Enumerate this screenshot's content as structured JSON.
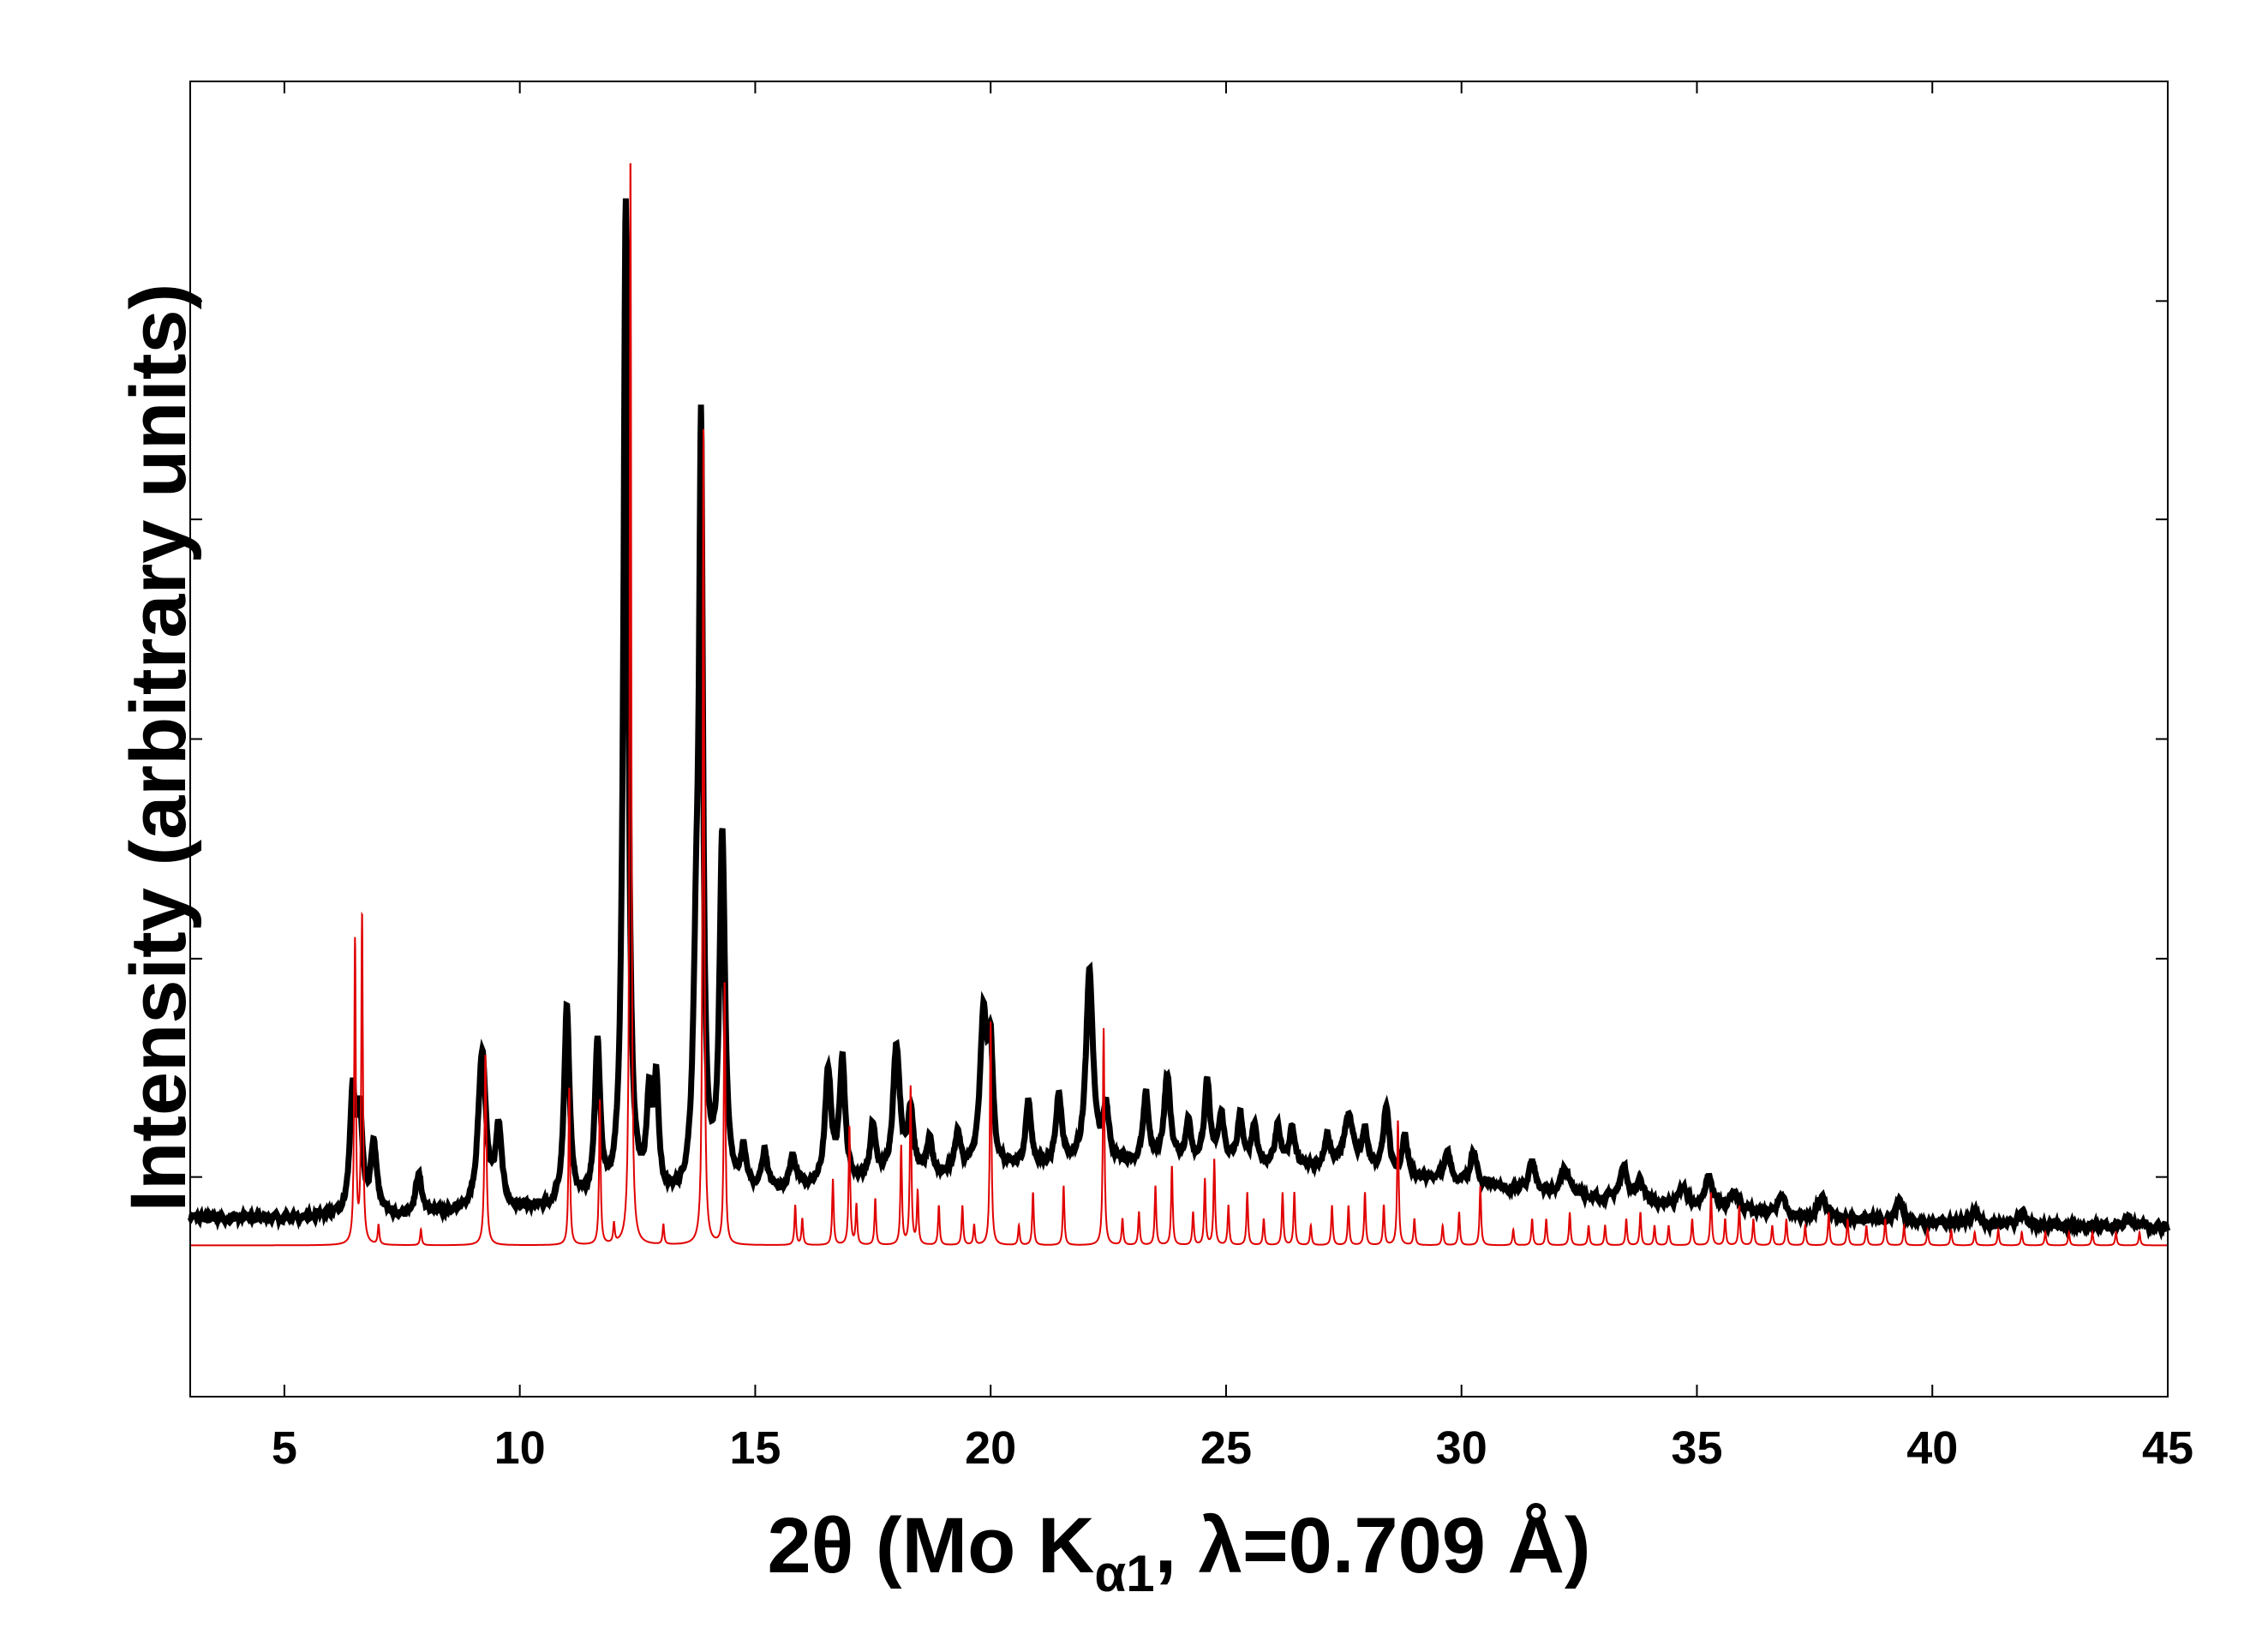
{
  "chart_data": {
    "type": "line",
    "xlabel": {
      "main": "2θ (Mo K",
      "sub": "α1",
      "rest": ", λ=0.709 Å)"
    },
    "ylabel": "Intensity (arbitrary units)",
    "xlim": [
      3,
      45
    ],
    "ylim": [
      0,
      100
    ],
    "xticks": [
      5,
      10,
      15,
      20,
      25,
      30,
      35,
      40,
      45
    ],
    "yticks": [
      16.7,
      33.3,
      50.0,
      66.7,
      83.3
    ],
    "grid": false,
    "legend": "none",
    "series": [
      {
        "color": "#000000",
        "baseline": 13.5,
        "baseline_end": 12.8,
        "noise": 0.5,
        "peaks": [
          [
            6.45,
            9.0,
            0.07
          ],
          [
            6.6,
            7.0,
            0.07
          ],
          [
            6.9,
            5.0,
            0.08
          ],
          [
            7.85,
            3.0,
            0.08
          ],
          [
            9.2,
            12.0,
            0.1
          ],
          [
            9.55,
            6.0,
            0.08
          ],
          [
            11.0,
            15.0,
            0.07
          ],
          [
            11.65,
            12.0,
            0.07
          ],
          [
            12.25,
            76.0,
            0.06
          ],
          [
            12.75,
            7.0,
            0.07
          ],
          [
            12.9,
            8.0,
            0.06
          ],
          [
            13.75,
            16.0,
            0.08
          ],
          [
            13.85,
            53.0,
            0.05
          ],
          [
            14.3,
            27.0,
            0.07
          ],
          [
            14.75,
            3.0,
            0.07
          ],
          [
            15.2,
            3.0,
            0.07
          ],
          [
            15.8,
            2.5,
            0.08
          ],
          [
            16.55,
            8.5,
            0.08
          ],
          [
            16.85,
            9.5,
            0.07
          ],
          [
            17.5,
            4.0,
            0.07
          ],
          [
            18.0,
            10.0,
            0.09
          ],
          [
            18.3,
            5.0,
            0.07
          ],
          [
            18.7,
            2.5,
            0.07
          ],
          [
            19.3,
            3.0,
            0.07
          ],
          [
            19.85,
            11.5,
            0.09
          ],
          [
            20.0,
            8.0,
            0.06
          ],
          [
            20.8,
            5.0,
            0.07
          ],
          [
            21.45,
            5.5,
            0.07
          ],
          [
            22.1,
            14.5,
            0.09
          ],
          [
            22.45,
            4.0,
            0.07
          ],
          [
            23.3,
            5.0,
            0.07
          ],
          [
            23.75,
            6.5,
            0.08
          ],
          [
            24.2,
            3.0,
            0.07
          ],
          [
            24.6,
            6.0,
            0.07
          ],
          [
            24.9,
            3.5,
            0.07
          ],
          [
            25.3,
            3.5,
            0.07
          ],
          [
            25.6,
            3.0,
            0.07
          ],
          [
            26.1,
            3.0,
            0.07
          ],
          [
            26.4,
            3.0,
            0.07
          ],
          [
            27.15,
            2.5,
            0.08
          ],
          [
            27.6,
            4.0,
            0.12
          ],
          [
            27.95,
            3.0,
            0.08
          ],
          [
            28.4,
            5.0,
            0.07
          ],
          [
            28.8,
            3.0,
            0.07
          ],
          [
            29.7,
            2.2,
            0.08
          ],
          [
            30.25,
            2.5,
            0.08
          ],
          [
            31.5,
            2.2,
            0.08
          ],
          [
            32.2,
            2.0,
            0.09
          ],
          [
            33.45,
            2.5,
            0.1
          ],
          [
            33.8,
            1.5,
            0.08
          ],
          [
            34.7,
            1.5,
            0.09
          ],
          [
            35.25,
            2.5,
            0.1
          ],
          [
            35.8,
            1.5,
            0.09
          ],
          [
            36.8,
            1.5,
            0.09
          ],
          [
            37.65,
            1.5,
            0.09
          ],
          [
            39.3,
            1.5,
            0.09
          ],
          [
            40.9,
            1.0,
            0.09
          ],
          [
            41.9,
            1.0,
            0.09
          ],
          [
            44.2,
            0.8,
            0.09
          ]
        ]
      },
      {
        "color": "#e00000",
        "baseline": 11.5,
        "baseline_end": 11.5,
        "noise": 0,
        "peaks": [
          [
            6.5,
            23.0,
            0.02
          ],
          [
            6.65,
            25.0,
            0.02
          ],
          [
            7.0,
            1.5,
            0.02
          ],
          [
            7.9,
            1.2,
            0.02
          ],
          [
            9.27,
            14.5,
            0.025
          ],
          [
            11.05,
            12.0,
            0.02
          ],
          [
            11.7,
            11.0,
            0.02
          ],
          [
            12.0,
            1.5,
            0.02
          ],
          [
            12.35,
            83.0,
            0.02
          ],
          [
            13.05,
            1.5,
            0.02
          ],
          [
            13.9,
            62.0,
            0.02
          ],
          [
            14.35,
            20.0,
            0.02
          ],
          [
            15.85,
            3.0,
            0.02
          ],
          [
            16.0,
            2.0,
            0.02
          ],
          [
            16.65,
            5.0,
            0.02
          ],
          [
            17.0,
            9.0,
            0.02
          ],
          [
            17.15,
            3.0,
            0.02
          ],
          [
            17.55,
            3.5,
            0.02
          ],
          [
            18.1,
            7.5,
            0.02
          ],
          [
            18.3,
            12.0,
            0.02
          ],
          [
            18.45,
            4.0,
            0.02
          ],
          [
            18.9,
            3.0,
            0.02
          ],
          [
            19.4,
            3.0,
            0.02
          ],
          [
            19.65,
            1.5,
            0.02
          ],
          [
            20.0,
            17.0,
            0.02
          ],
          [
            20.6,
            1.5,
            0.02
          ],
          [
            20.9,
            4.0,
            0.02
          ],
          [
            21.55,
            4.5,
            0.02
          ],
          [
            22.4,
            16.5,
            0.02
          ],
          [
            22.8,
            2.0,
            0.02
          ],
          [
            23.15,
            2.5,
            0.02
          ],
          [
            23.5,
            4.5,
            0.02
          ],
          [
            23.85,
            6.0,
            0.02
          ],
          [
            24.3,
            2.5,
            0.02
          ],
          [
            24.55,
            5.0,
            0.02
          ],
          [
            24.75,
            6.5,
            0.02
          ],
          [
            25.05,
            3.0,
            0.02
          ],
          [
            25.45,
            4.0,
            0.02
          ],
          [
            25.8,
            2.0,
            0.02
          ],
          [
            26.2,
            4.0,
            0.02
          ],
          [
            26.45,
            4.0,
            0.02
          ],
          [
            26.8,
            1.5,
            0.02
          ],
          [
            27.25,
            3.0,
            0.02
          ],
          [
            27.6,
            3.0,
            0.02
          ],
          [
            27.95,
            4.0,
            0.02
          ],
          [
            28.35,
            3.0,
            0.02
          ],
          [
            28.65,
            9.5,
            0.02
          ],
          [
            29.0,
            2.0,
            0.02
          ],
          [
            29.6,
            1.5,
            0.02
          ],
          [
            29.95,
            2.5,
            0.02
          ],
          [
            30.4,
            4.5,
            0.02
          ],
          [
            31.1,
            1.2,
            0.02
          ],
          [
            31.5,
            2.0,
            0.02
          ],
          [
            31.8,
            2.0,
            0.02
          ],
          [
            32.3,
            2.5,
            0.02
          ],
          [
            32.7,
            1.5,
            0.02
          ],
          [
            33.05,
            1.5,
            0.02
          ],
          [
            33.5,
            2.0,
            0.02
          ],
          [
            33.8,
            2.5,
            0.02
          ],
          [
            34.1,
            1.5,
            0.02
          ],
          [
            34.4,
            1.5,
            0.02
          ],
          [
            34.9,
            2.0,
            0.02
          ],
          [
            35.3,
            4.0,
            0.02
          ],
          [
            35.6,
            2.0,
            0.02
          ],
          [
            35.9,
            3.0,
            0.02
          ],
          [
            36.2,
            2.0,
            0.02
          ],
          [
            36.6,
            1.5,
            0.02
          ],
          [
            36.9,
            2.0,
            0.02
          ],
          [
            37.3,
            1.5,
            0.02
          ],
          [
            37.8,
            2.5,
            0.02
          ],
          [
            38.2,
            2.0,
            0.02
          ],
          [
            38.6,
            1.5,
            0.02
          ],
          [
            39.0,
            2.0,
            0.02
          ],
          [
            39.4,
            1.5,
            0.02
          ],
          [
            39.9,
            1.2,
            0.02
          ],
          [
            40.4,
            1.2,
            0.02
          ],
          [
            40.9,
            1.0,
            0.02
          ],
          [
            41.4,
            1.2,
            0.02
          ],
          [
            41.9,
            1.0,
            0.02
          ],
          [
            42.4,
            1.0,
            0.02
          ],
          [
            42.9,
            1.0,
            0.02
          ],
          [
            43.4,
            1.0,
            0.02
          ],
          [
            43.9,
            1.0,
            0.02
          ],
          [
            44.4,
            1.0,
            0.02
          ]
        ]
      }
    ]
  }
}
